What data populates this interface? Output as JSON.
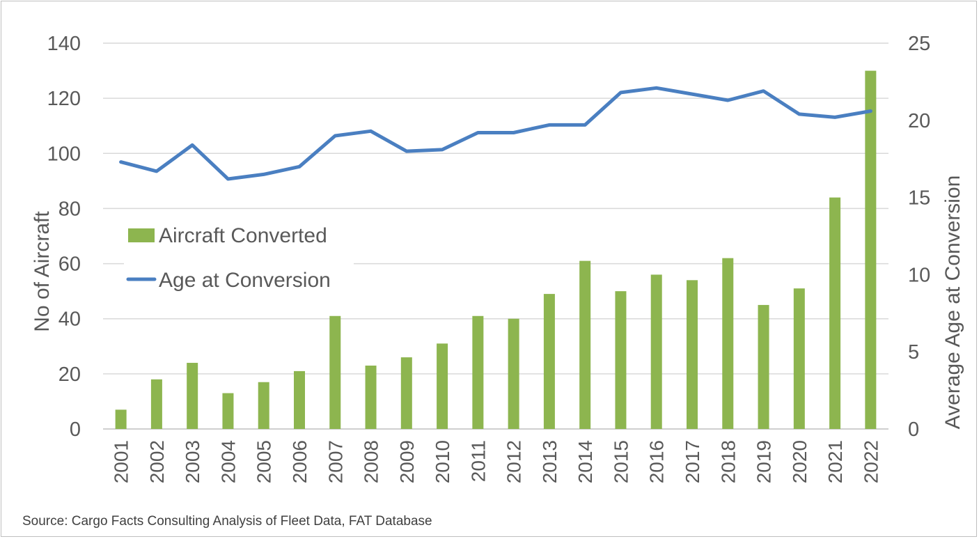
{
  "chart_data": {
    "type": "bar",
    "categories": [
      "2001",
      "2002",
      "2003",
      "2004",
      "2005",
      "2006",
      "2007",
      "2008",
      "2009",
      "2010",
      "2011",
      "2012",
      "2013",
      "2014",
      "2015",
      "2016",
      "2017",
      "2018",
      "2019",
      "2020",
      "2021",
      "2022"
    ],
    "series": [
      {
        "name": "Aircraft Converted",
        "type": "bar",
        "axis": "left",
        "color": "#8db54f",
        "values": [
          7,
          18,
          24,
          13,
          17,
          21,
          41,
          23,
          26,
          31,
          41,
          40,
          49,
          61,
          50,
          56,
          54,
          62,
          45,
          51,
          84,
          130
        ]
      },
      {
        "name": "Age at Conversion",
        "type": "line",
        "axis": "right",
        "color": "#4a7fc1",
        "values": [
          17.3,
          16.7,
          18.4,
          16.2,
          16.5,
          17.0,
          19.0,
          19.3,
          18.0,
          18.1,
          19.2,
          19.2,
          19.7,
          19.7,
          21.8,
          22.1,
          21.7,
          21.3,
          21.9,
          20.4,
          20.2,
          20.6
        ]
      }
    ],
    "ylabel": "No of Aircraft",
    "y2label": "Average Age at Conversion",
    "ylim": [
      0,
      140
    ],
    "y2lim": [
      0,
      25
    ],
    "yticks": [
      "0",
      "20",
      "40",
      "60",
      "80",
      "100",
      "120",
      "140"
    ],
    "y2ticks": [
      "0",
      "5",
      "10",
      "15",
      "20",
      "25"
    ],
    "grid": true,
    "legend_position": "left"
  },
  "source_note": "Source: Cargo Facts Consulting Analysis of Fleet Data, FAT Database"
}
